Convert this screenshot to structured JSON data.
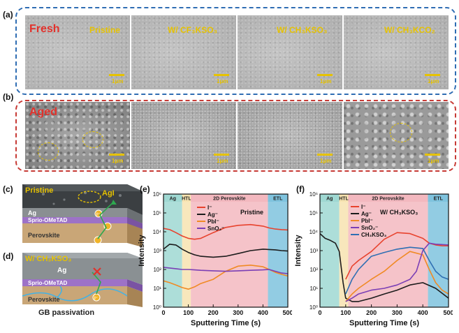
{
  "panels": {
    "a": "(a)",
    "b": "(b)",
    "c": "(c)",
    "d": "(d)",
    "e": "(e)",
    "f": "(f)"
  },
  "row_labels": {
    "fresh": "Fresh",
    "aged": "Aged"
  },
  "samples": {
    "pristine": "Pristine",
    "cf3kso3": "W/ CF₃KSO₃",
    "ch3kso3": "W/ CH₃KSO₃",
    "ch3kco2": "W/ CH₃KCO₂"
  },
  "scale_bar": "1μm",
  "schematic_c": {
    "title": "Pristine",
    "agi": "AgI",
    "ag": "Ag",
    "htl": "Sprio-OMeTAD",
    "perovskite": "Perovskite",
    "ion": "I⁻"
  },
  "schematic_d": {
    "title": "W/ CH₃KSO₃",
    "ag": "Ag",
    "htl": "Sprio-OMeTAD",
    "perovskite": "Perovskite",
    "ion": "I⁻",
    "caption": "GB passivation"
  },
  "colors": {
    "i": "#e8432e",
    "ag": "#1c1c1c",
    "pbi": "#f08a24",
    "sno2": "#7b3fb5",
    "ch3kso3": "#2f6fb3",
    "region_ag": "#9fd8d2",
    "region_htl": "#f7e3b0",
    "region_perovskite": "#f3b8bf",
    "region_etl": "#7fc3de"
  },
  "chart_data": [
    {
      "type": "line",
      "title": "Pristine",
      "xlabel": "Sputtering Time (s)",
      "ylabel": "Intensity",
      "xlim": [
        0,
        500
      ],
      "ylim": [
        1,
        1000000
      ],
      "yscale": "log",
      "xticks": [
        0,
        100,
        200,
        300,
        400,
        500
      ],
      "yticks": [
        "10⁰",
        "10¹",
        "10²",
        "10³",
        "10⁴",
        "10⁵",
        "10⁶"
      ],
      "regions": [
        {
          "label": "Ag",
          "from": 0,
          "to": 75
        },
        {
          "label": "HTL",
          "from": 75,
          "to": 110
        },
        {
          "label": "2D Perovskite",
          "from": 110,
          "to": 420
        },
        {
          "label": "ETL",
          "from": 420,
          "to": 500
        }
      ],
      "legend": "top-left",
      "series": [
        {
          "name": "I⁻",
          "x": [
            0,
            25,
            50,
            75,
            100,
            125,
            150,
            200,
            250,
            300,
            350,
            400,
            425,
            450,
            475,
            500
          ],
          "y": [
            15000,
            13000,
            9000,
            6000,
            4500,
            4000,
            4500,
            9000,
            17000,
            22000,
            24000,
            20000,
            16000,
            14000,
            13000,
            12500
          ]
        },
        {
          "name": "Ag⁻",
          "x": [
            0,
            25,
            50,
            75,
            100,
            125,
            150,
            200,
            250,
            300,
            350,
            400,
            425,
            450,
            475,
            500
          ],
          "y": [
            1200,
            2200,
            2000,
            1200,
            800,
            600,
            500,
            450,
            500,
            700,
            1000,
            1200,
            1150,
            1100,
            1000,
            950
          ]
        },
        {
          "name": "PbI⁻",
          "x": [
            0,
            25,
            50,
            75,
            100,
            125,
            150,
            200,
            250,
            300,
            350,
            400,
            425,
            450,
            475,
            500
          ],
          "y": [
            25,
            20,
            15,
            11,
            9,
            12,
            18,
            30,
            80,
            150,
            170,
            140,
            100,
            70,
            55,
            45
          ]
        },
        {
          "name": "SnO₂⁻",
          "x": [
            0,
            25,
            50,
            75,
            100,
            125,
            150,
            200,
            250,
            300,
            350,
            400,
            425,
            450,
            475,
            500
          ],
          "y": [
            130,
            120,
            110,
            100,
            100,
            95,
            90,
            85,
            80,
            85,
            90,
            95,
            100,
            80,
            65,
            60
          ]
        }
      ]
    },
    {
      "type": "line",
      "title": "W/ CH₃KSO₃",
      "xlabel": "Sputtering Time (s)",
      "ylabel": "Intensity",
      "xlim": [
        0,
        500
      ],
      "ylim": [
        1,
        1000000
      ],
      "yscale": "log",
      "xticks": [
        0,
        100,
        200,
        300,
        400,
        500
      ],
      "yticks": [
        "10⁰",
        "10¹",
        "10²",
        "10³",
        "10⁴",
        "10⁵",
        "10⁶"
      ],
      "regions": [
        {
          "label": "Ag",
          "from": 0,
          "to": 75
        },
        {
          "label": "HTL",
          "from": 75,
          "to": 110
        },
        {
          "label": "2D Perovskite",
          "from": 110,
          "to": 420
        },
        {
          "label": "ETL",
          "from": 420,
          "to": 500
        }
      ],
      "legend": "top-left",
      "series": [
        {
          "name": "I⁻",
          "x": [
            100,
            125,
            150,
            200,
            250,
            300,
            350,
            400,
            425,
            450,
            475,
            500
          ],
          "y": [
            30,
            150,
            300,
            900,
            4000,
            9000,
            8000,
            4500,
            2500,
            2000,
            1800,
            1800
          ]
        },
        {
          "name": "Ag⁻",
          "x": [
            0,
            20,
            40,
            60,
            75,
            90,
            100,
            125,
            150,
            200,
            250,
            300,
            350,
            400,
            450,
            500
          ],
          "y": [
            8000,
            4500,
            3500,
            2500,
            900,
            20,
            3,
            2,
            2,
            3,
            5,
            8,
            15,
            20,
            10,
            3
          ]
        },
        {
          "name": "PbI⁻",
          "x": [
            100,
            125,
            150,
            200,
            250,
            300,
            350,
            400,
            425,
            450,
            475,
            500
          ],
          "y": [
            2,
            5,
            10,
            30,
            80,
            300,
            900,
            600,
            100,
            20,
            8,
            5
          ]
        },
        {
          "name": "SnO₂⁻",
          "x": [
            100,
            125,
            150,
            200,
            250,
            300,
            350,
            375,
            400,
            425,
            450,
            475,
            500
          ],
          "y": [
            2,
            3,
            5,
            8,
            10,
            15,
            30,
            80,
            1000,
            2500,
            2200,
            2100,
            2000
          ]
        },
        {
          "name": "CH₃KSO₃",
          "x": [
            100,
            125,
            150,
            200,
            250,
            300,
            350,
            400,
            425,
            450,
            475,
            500
          ],
          "y": [
            5,
            30,
            100,
            500,
            800,
            1200,
            1500,
            1300,
            300,
            80,
            40,
            30
          ]
        }
      ]
    }
  ]
}
